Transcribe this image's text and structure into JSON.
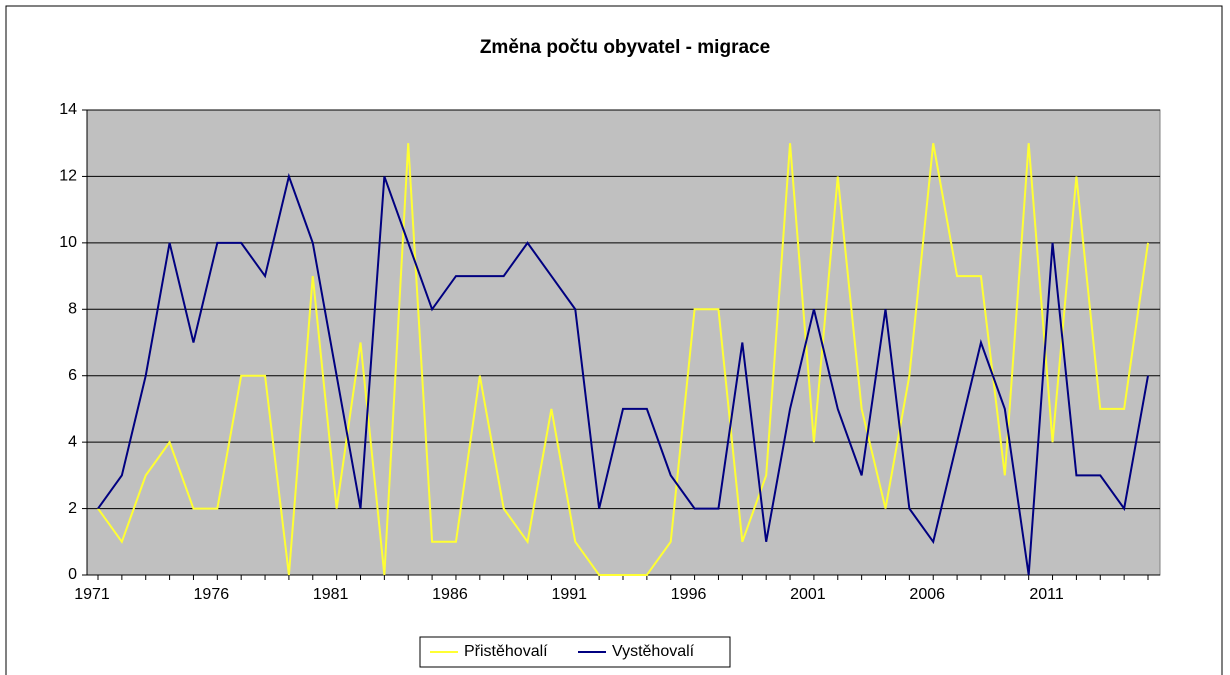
{
  "chart_data": {
    "type": "line",
    "title": "Změna počtu obyvatel - migrace",
    "categories": [
      "1971",
      null,
      null,
      null,
      null,
      "1976",
      null,
      null,
      null,
      null,
      "1981",
      null,
      null,
      null,
      null,
      "1986",
      null,
      null,
      null,
      null,
      "1991",
      null,
      null,
      null,
      null,
      "1996",
      null,
      null,
      null,
      null,
      "2001",
      null,
      null,
      null,
      null,
      "2006",
      null,
      null,
      null,
      null,
      "2011",
      null,
      null,
      null,
      null
    ],
    "series": [
      {
        "name": "Přistěhovalí",
        "color": "#ffff33",
        "values": [
          2,
          1,
          3,
          4,
          2,
          2,
          6,
          6,
          0,
          9,
          2,
          7,
          0,
          13,
          1,
          1,
          6,
          2,
          1,
          5,
          1,
          0,
          0,
          0,
          1,
          8,
          8,
          1,
          3,
          13,
          4,
          12,
          5,
          2,
          6,
          13,
          9,
          9,
          3,
          13,
          4,
          12,
          5,
          5,
          10
        ]
      },
      {
        "name": "Vystěhovalí",
        "color": "#000080",
        "values": [
          2,
          3,
          6,
          10,
          7,
          10,
          10,
          9,
          12,
          10,
          6,
          2,
          12,
          10,
          8,
          9,
          9,
          9,
          10,
          9,
          8,
          2,
          5,
          5,
          3,
          2,
          2,
          7,
          1,
          5,
          8,
          5,
          3,
          8,
          2,
          1,
          4,
          7,
          5,
          0,
          10,
          3,
          3,
          2,
          6
        ]
      }
    ],
    "ylim": [
      0,
      14
    ],
    "yticks": [
      0,
      2,
      4,
      6,
      8,
      10,
      12,
      14
    ],
    "grid": true,
    "plot_background": "#c0c0c0",
    "legend": "bottom"
  }
}
